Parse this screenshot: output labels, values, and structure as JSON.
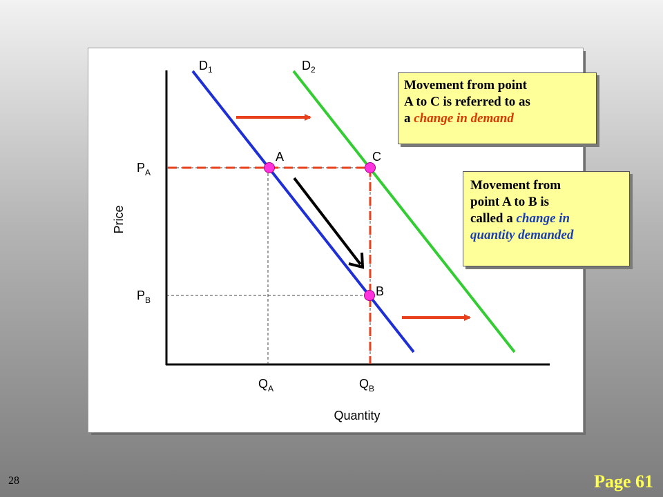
{
  "colors": {
    "d1": "#1f2fd6",
    "d2": "#33cc33",
    "dashed_red": "#e8401c",
    "point": "#ff33dd",
    "arrow_red": "#e8401c",
    "arrow_black": "#000000",
    "callout_bg": "#ffff99",
    "highlight_red": "#d83a00",
    "highlight_blue": "#1a3fb3",
    "page_label": "#ffff55"
  },
  "curves": {
    "d1_main": "D",
    "d1_sub": "1",
    "d2_main": "D",
    "d2_sub": "2"
  },
  "points": {
    "a": "A",
    "b": "B",
    "c": "C"
  },
  "axes": {
    "y_label": "Price",
    "x_label": "Quantity",
    "pa_main": "P",
    "pa_sub": "A",
    "pb_main": "P",
    "pb_sub": "B",
    "qa_main": "Q",
    "qa_sub": "A",
    "qb_main": "Q",
    "qb_sub": "B"
  },
  "callouts": {
    "demand_change": {
      "line1": "Movement from point",
      "line2": "A to C is referred to as",
      "line3_prefix": "a ",
      "line3_highlight": "change in demand"
    },
    "quantity_change": {
      "line1": "Movement from",
      "line2": "point A to B is",
      "line3_prefix": "called a ",
      "line3_highlight": "change in",
      "line4_highlight": "quantity demanded"
    }
  },
  "footer": {
    "slide_number": "28",
    "page_label": "Page 61"
  }
}
